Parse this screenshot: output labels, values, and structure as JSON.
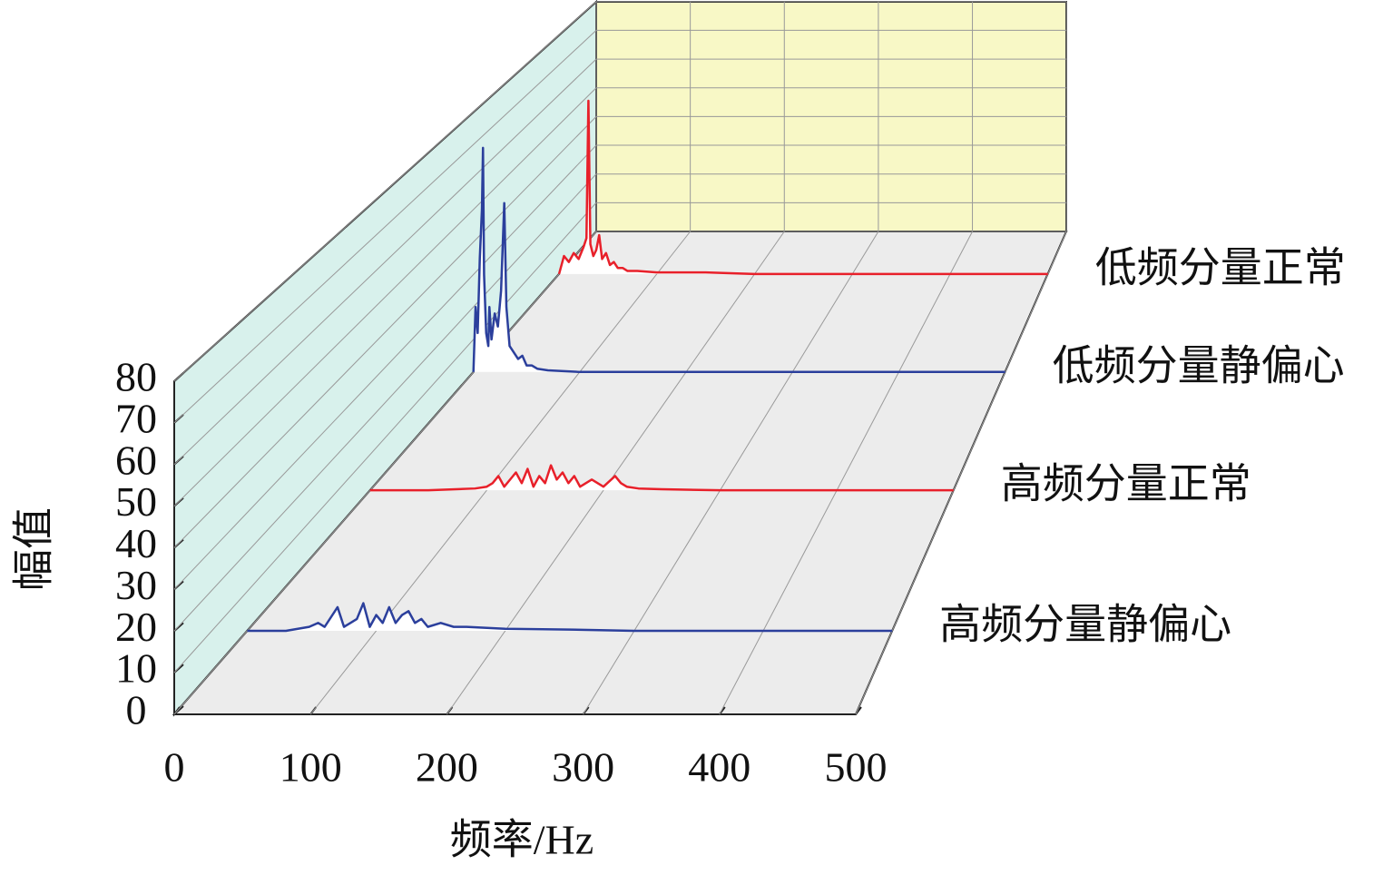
{
  "chart_data": {
    "type": "waterfall",
    "xlabel": "频率/Hz",
    "ylabel": "幅值",
    "xlim": [
      0,
      500
    ],
    "xticks": [
      0,
      100,
      200,
      300,
      400,
      500
    ],
    "ylim": [
      0,
      80
    ],
    "yticks": [
      0,
      10,
      20,
      30,
      40,
      50,
      60,
      70,
      80
    ],
    "grid": true,
    "series": [
      {
        "name": "高频分量静偏心",
        "color": "#2b3f9c",
        "x": [
          0,
          30,
          48,
          55,
          60,
          70,
          75,
          80,
          85,
          90,
          95,
          100,
          105,
          110,
          115,
          120,
          125,
          130,
          135,
          140,
          150,
          160,
          170,
          200,
          250,
          300,
          400,
          500
        ],
        "values": [
          0,
          0,
          1,
          2,
          1,
          6,
          1,
          2,
          3,
          7,
          1,
          4,
          2,
          6,
          2,
          4,
          5,
          2,
          3,
          1,
          2,
          1,
          1,
          0.5,
          0.3,
          0,
          0,
          0
        ]
      },
      {
        "name": "高频分量正常",
        "color": "#e8202a",
        "x": [
          0,
          50,
          90,
          100,
          105,
          110,
          115,
          120,
          125,
          130,
          135,
          140,
          145,
          150,
          155,
          160,
          165,
          170,
          175,
          180,
          190,
          200,
          210,
          215,
          220,
          230,
          250,
          300,
          400,
          500
        ],
        "values": [
          0,
          0,
          0.5,
          1,
          2,
          4,
          1,
          3,
          5,
          2,
          6,
          1,
          4,
          2,
          7,
          3,
          5,
          2,
          4,
          1,
          3,
          1,
          4,
          2,
          1,
          0.5,
          0.3,
          0,
          0,
          0
        ]
      },
      {
        "name": "低频分量静偏心",
        "color": "#2b3f9c",
        "x": [
          0,
          2,
          4,
          6,
          8,
          9,
          10,
          12,
          14,
          15,
          17,
          20,
          23,
          26,
          29,
          31,
          34,
          38,
          42,
          46,
          50,
          55,
          60,
          70,
          100,
          200,
          300,
          400,
          500
        ],
        "values": [
          0,
          20,
          12,
          35,
          50,
          69,
          30,
          12,
          8,
          20,
          10,
          18,
          14,
          25,
          52,
          20,
          8,
          6,
          4,
          5,
          2,
          2,
          1,
          0.5,
          0,
          0,
          0,
          0,
          0
        ]
      },
      {
        "name": "低频分量正常",
        "color": "#e8202a",
        "x": [
          0,
          5,
          10,
          15,
          20,
          25,
          28,
          30,
          32,
          35,
          38,
          41,
          44,
          48,
          52,
          56,
          60,
          65,
          70,
          80,
          100,
          150,
          200,
          300,
          400,
          500
        ],
        "values": [
          0,
          6,
          4,
          7,
          5,
          9,
          12,
          58,
          10,
          6,
          8,
          13,
          5,
          7,
          3,
          4,
          2,
          2,
          1,
          1,
          0.5,
          0.5,
          0,
          0,
          0,
          0
        ]
      }
    ]
  }
}
